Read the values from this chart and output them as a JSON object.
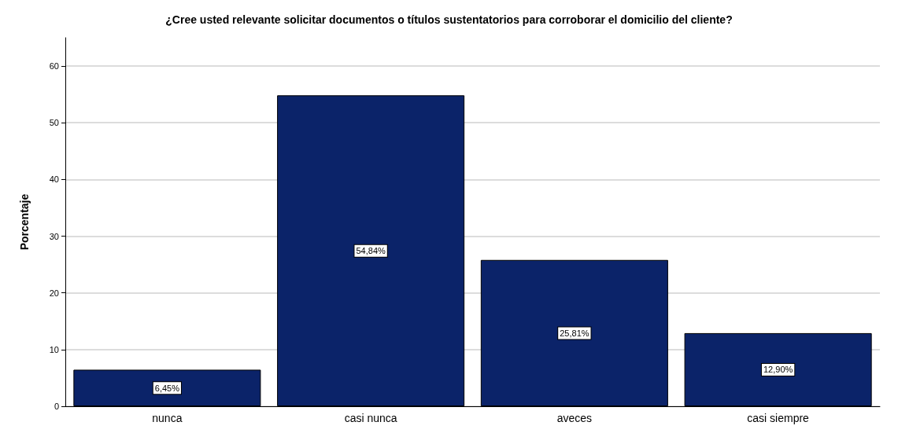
{
  "chart_data": {
    "type": "bar",
    "title": "¿Cree usted relevante solicitar documentos o títulos sustentatorios para corroborar el domicilio del cliente?",
    "ylabel": "Porcentaje",
    "categories": [
      "nunca",
      "casi nunca",
      "aveces",
      "casi siempre"
    ],
    "values": [
      6.45,
      54.84,
      25.81,
      12.9
    ],
    "value_labels": [
      "6,45%",
      "54,84%",
      "25,81%",
      "12,90%"
    ],
    "color": "#0b2369",
    "ylim": [
      0,
      65
    ],
    "yticks": [
      0,
      10,
      20,
      30,
      40,
      50,
      60
    ],
    "grid": "y"
  }
}
